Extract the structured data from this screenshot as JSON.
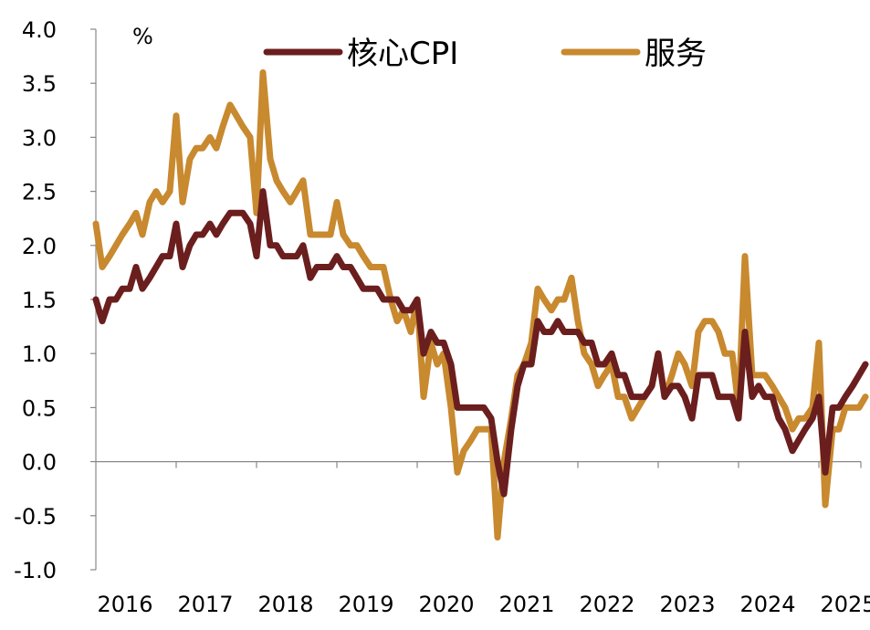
{
  "chart_data": {
    "type": "line",
    "unit": "%",
    "ylim": [
      -1.0,
      4.0
    ],
    "xlim": [
      2016,
      2025.75
    ],
    "yticks": [
      "4.0",
      "3.5",
      "3.0",
      "2.5",
      "2.0",
      "1.5",
      "1.0",
      "0.5",
      "0.0",
      "-0.5",
      "-1.0"
    ],
    "xticks": [
      "2016",
      "2017",
      "2018",
      "2019",
      "2020",
      "2021",
      "2022",
      "2023",
      "2024",
      "2025"
    ],
    "grid": false,
    "legend_position": "top",
    "series": [
      {
        "name": "核心CPI",
        "color": "#6b1e1e",
        "points": [
          [
            2016.0,
            1.5
          ],
          [
            2016.08,
            1.3
          ],
          [
            2016.17,
            1.5
          ],
          [
            2016.25,
            1.5
          ],
          [
            2016.33,
            1.6
          ],
          [
            2016.42,
            1.6
          ],
          [
            2016.5,
            1.8
          ],
          [
            2016.58,
            1.6
          ],
          [
            2016.67,
            1.7
          ],
          [
            2016.75,
            1.8
          ],
          [
            2016.83,
            1.9
          ],
          [
            2016.92,
            1.9
          ],
          [
            2017.0,
            2.2
          ],
          [
            2017.08,
            1.8
          ],
          [
            2017.17,
            2.0
          ],
          [
            2017.25,
            2.1
          ],
          [
            2017.33,
            2.1
          ],
          [
            2017.42,
            2.2
          ],
          [
            2017.5,
            2.1
          ],
          [
            2017.58,
            2.2
          ],
          [
            2017.67,
            2.3
          ],
          [
            2017.75,
            2.3
          ],
          [
            2017.83,
            2.3
          ],
          [
            2017.92,
            2.2
          ],
          [
            2018.0,
            1.9
          ],
          [
            2018.08,
            2.5
          ],
          [
            2018.17,
            2.0
          ],
          [
            2018.25,
            2.0
          ],
          [
            2018.33,
            1.9
          ],
          [
            2018.42,
            1.9
          ],
          [
            2018.5,
            1.9
          ],
          [
            2018.58,
            2.0
          ],
          [
            2018.67,
            1.7
          ],
          [
            2018.75,
            1.8
          ],
          [
            2018.83,
            1.8
          ],
          [
            2018.92,
            1.8
          ],
          [
            2019.0,
            1.9
          ],
          [
            2019.08,
            1.8
          ],
          [
            2019.17,
            1.8
          ],
          [
            2019.25,
            1.7
          ],
          [
            2019.33,
            1.6
          ],
          [
            2019.42,
            1.6
          ],
          [
            2019.5,
            1.6
          ],
          [
            2019.58,
            1.5
          ],
          [
            2019.67,
            1.5
          ],
          [
            2019.75,
            1.5
          ],
          [
            2019.83,
            1.4
          ],
          [
            2019.92,
            1.4
          ],
          [
            2020.0,
            1.5
          ],
          [
            2020.08,
            1.0
          ],
          [
            2020.17,
            1.2
          ],
          [
            2020.25,
            1.1
          ],
          [
            2020.33,
            1.1
          ],
          [
            2020.42,
            0.9
          ],
          [
            2020.5,
            0.5
          ],
          [
            2020.58,
            0.5
          ],
          [
            2020.67,
            0.5
          ],
          [
            2020.75,
            0.5
          ],
          [
            2020.83,
            0.5
          ],
          [
            2020.92,
            0.4
          ],
          [
            2021.0,
            0.0
          ],
          [
            2021.08,
            -0.3
          ],
          [
            2021.17,
            0.3
          ],
          [
            2021.25,
            0.7
          ],
          [
            2021.33,
            0.9
          ],
          [
            2021.42,
            0.9
          ],
          [
            2021.5,
            1.3
          ],
          [
            2021.58,
            1.2
          ],
          [
            2021.67,
            1.2
          ],
          [
            2021.75,
            1.3
          ],
          [
            2021.83,
            1.2
          ],
          [
            2021.92,
            1.2
          ],
          [
            2022.0,
            1.2
          ],
          [
            2022.08,
            1.1
          ],
          [
            2022.17,
            1.1
          ],
          [
            2022.25,
            0.9
          ],
          [
            2022.33,
            0.9
          ],
          [
            2022.42,
            1.0
          ],
          [
            2022.5,
            0.8
          ],
          [
            2022.58,
            0.8
          ],
          [
            2022.67,
            0.6
          ],
          [
            2022.75,
            0.6
          ],
          [
            2022.83,
            0.6
          ],
          [
            2022.92,
            0.7
          ],
          [
            2023.0,
            1.0
          ],
          [
            2023.08,
            0.6
          ],
          [
            2023.17,
            0.7
          ],
          [
            2023.25,
            0.7
          ],
          [
            2023.33,
            0.6
          ],
          [
            2023.42,
            0.4
          ],
          [
            2023.5,
            0.8
          ],
          [
            2023.58,
            0.8
          ],
          [
            2023.67,
            0.8
          ],
          [
            2023.75,
            0.6
          ],
          [
            2023.83,
            0.6
          ],
          [
            2023.92,
            0.6
          ],
          [
            2024.0,
            0.4
          ],
          [
            2024.08,
            1.2
          ],
          [
            2024.17,
            0.6
          ],
          [
            2024.25,
            0.7
          ],
          [
            2024.33,
            0.6
          ],
          [
            2024.42,
            0.6
          ],
          [
            2024.5,
            0.4
          ],
          [
            2024.58,
            0.3
          ],
          [
            2024.67,
            0.1
          ],
          [
            2024.75,
            0.2
          ],
          [
            2024.83,
            0.3
          ],
          [
            2024.92,
            0.4
          ],
          [
            2025.0,
            0.6
          ],
          [
            2025.08,
            -0.1
          ],
          [
            2025.17,
            0.5
          ],
          [
            2025.25,
            0.5
          ],
          [
            2025.33,
            0.6
          ],
          [
            2025.42,
            0.7
          ],
          [
            2025.5,
            0.8
          ],
          [
            2025.58,
            0.9
          ]
        ]
      },
      {
        "name": "服务",
        "color": "#c8892f",
        "points": [
          [
            2016.0,
            2.2
          ],
          [
            2016.08,
            1.8
          ],
          [
            2016.17,
            1.9
          ],
          [
            2016.25,
            2.0
          ],
          [
            2016.33,
            2.1
          ],
          [
            2016.42,
            2.2
          ],
          [
            2016.5,
            2.3
          ],
          [
            2016.58,
            2.1
          ],
          [
            2016.67,
            2.4
          ],
          [
            2016.75,
            2.5
          ],
          [
            2016.83,
            2.4
          ],
          [
            2016.92,
            2.5
          ],
          [
            2017.0,
            3.2
          ],
          [
            2017.08,
            2.4
          ],
          [
            2017.17,
            2.8
          ],
          [
            2017.25,
            2.9
          ],
          [
            2017.33,
            2.9
          ],
          [
            2017.42,
            3.0
          ],
          [
            2017.5,
            2.9
          ],
          [
            2017.58,
            3.1
          ],
          [
            2017.67,
            3.3
          ],
          [
            2017.75,
            3.2
          ],
          [
            2017.83,
            3.1
          ],
          [
            2017.92,
            3.0
          ],
          [
            2018.0,
            2.3
          ],
          [
            2018.08,
            3.6
          ],
          [
            2018.17,
            2.8
          ],
          [
            2018.25,
            2.6
          ],
          [
            2018.33,
            2.5
          ],
          [
            2018.42,
            2.4
          ],
          [
            2018.5,
            2.5
          ],
          [
            2018.58,
            2.6
          ],
          [
            2018.67,
            2.1
          ],
          [
            2018.75,
            2.1
          ],
          [
            2018.83,
            2.1
          ],
          [
            2018.92,
            2.1
          ],
          [
            2019.0,
            2.4
          ],
          [
            2019.08,
            2.1
          ],
          [
            2019.17,
            2.0
          ],
          [
            2019.25,
            2.0
          ],
          [
            2019.33,
            1.9
          ],
          [
            2019.42,
            1.8
          ],
          [
            2019.5,
            1.8
          ],
          [
            2019.58,
            1.8
          ],
          [
            2019.67,
            1.5
          ],
          [
            2019.75,
            1.3
          ],
          [
            2019.83,
            1.4
          ],
          [
            2019.92,
            1.2
          ],
          [
            2020.0,
            1.5
          ],
          [
            2020.08,
            0.6
          ],
          [
            2020.17,
            1.1
          ],
          [
            2020.25,
            0.9
          ],
          [
            2020.33,
            1.0
          ],
          [
            2020.42,
            0.5
          ],
          [
            2020.5,
            -0.1
          ],
          [
            2020.58,
            0.1
          ],
          [
            2020.67,
            0.2
          ],
          [
            2020.75,
            0.3
          ],
          [
            2020.83,
            0.3
          ],
          [
            2020.92,
            0.3
          ],
          [
            2021.0,
            -0.7
          ],
          [
            2021.08,
            0.0
          ],
          [
            2021.17,
            0.4
          ],
          [
            2021.25,
            0.8
          ],
          [
            2021.33,
            0.9
          ],
          [
            2021.42,
            1.1
          ],
          [
            2021.5,
            1.6
          ],
          [
            2021.58,
            1.5
          ],
          [
            2021.67,
            1.4
          ],
          [
            2021.75,
            1.5
          ],
          [
            2021.83,
            1.5
          ],
          [
            2021.92,
            1.7
          ],
          [
            2022.0,
            1.3
          ],
          [
            2022.08,
            1.0
          ],
          [
            2022.17,
            0.9
          ],
          [
            2022.25,
            0.7
          ],
          [
            2022.33,
            0.8
          ],
          [
            2022.42,
            0.9
          ],
          [
            2022.5,
            0.6
          ],
          [
            2022.58,
            0.6
          ],
          [
            2022.67,
            0.4
          ],
          [
            2022.75,
            0.5
          ],
          [
            2022.83,
            0.6
          ],
          [
            2022.92,
            0.7
          ],
          [
            2023.0,
            1.0
          ],
          [
            2023.08,
            0.6
          ],
          [
            2023.17,
            0.8
          ],
          [
            2023.25,
            1.0
          ],
          [
            2023.33,
            0.9
          ],
          [
            2023.42,
            0.7
          ],
          [
            2023.5,
            1.2
          ],
          [
            2023.58,
            1.3
          ],
          [
            2023.67,
            1.3
          ],
          [
            2023.75,
            1.2
          ],
          [
            2023.83,
            1.0
          ],
          [
            2023.92,
            1.0
          ],
          [
            2024.0,
            0.5
          ],
          [
            2024.08,
            1.9
          ],
          [
            2024.17,
            0.8
          ],
          [
            2024.25,
            0.8
          ],
          [
            2024.33,
            0.8
          ],
          [
            2024.42,
            0.7
          ],
          [
            2024.5,
            0.6
          ],
          [
            2024.58,
            0.5
          ],
          [
            2024.67,
            0.3
          ],
          [
            2024.75,
            0.4
          ],
          [
            2024.83,
            0.4
          ],
          [
            2024.92,
            0.5
          ],
          [
            2025.0,
            1.1
          ],
          [
            2025.08,
            -0.4
          ],
          [
            2025.17,
            0.3
          ],
          [
            2025.25,
            0.3
          ],
          [
            2025.33,
            0.5
          ],
          [
            2025.42,
            0.5
          ],
          [
            2025.5,
            0.5
          ],
          [
            2025.58,
            0.6
          ]
        ]
      }
    ]
  }
}
